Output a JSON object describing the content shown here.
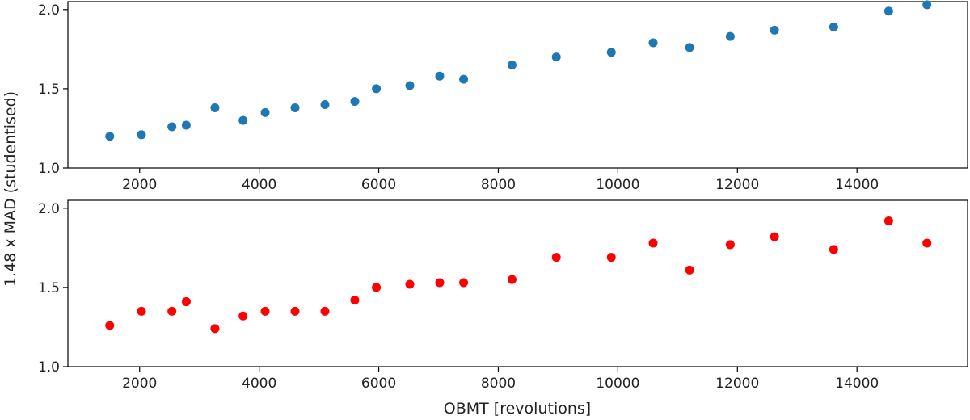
{
  "chart_data": [
    {
      "type": "scatter",
      "color": "#1f77b4",
      "ylim": [
        1.0,
        2.05
      ],
      "xlim": [
        800,
        15850
      ],
      "xticks": [
        2000,
        4000,
        6000,
        8000,
        10000,
        12000,
        14000
      ],
      "yticks": [
        1.0,
        1.5,
        2.0
      ],
      "x": [
        1500,
        2030,
        2540,
        2780,
        3260,
        3730,
        4100,
        4600,
        5100,
        5600,
        5960,
        6520,
        7020,
        7420,
        8230,
        8970,
        9890,
        10590,
        11200,
        11880,
        12620,
        13610,
        14530,
        15170
      ],
      "y": [
        1.2,
        1.21,
        1.26,
        1.27,
        1.38,
        1.3,
        1.35,
        1.38,
        1.4,
        1.42,
        1.5,
        1.52,
        1.58,
        1.56,
        1.65,
        1.7,
        1.73,
        1.79,
        1.76,
        1.83,
        1.87,
        1.89,
        1.99,
        2.03
      ],
      "ylabel": "1.48 x MAD (studentised)",
      "xlabel": ""
    },
    {
      "type": "scatter",
      "color": "#ff0000",
      "ylim": [
        1.0,
        2.05
      ],
      "xlim": [
        800,
        15850
      ],
      "xticks": [
        2000,
        4000,
        6000,
        8000,
        10000,
        12000,
        14000
      ],
      "yticks": [
        1.0,
        1.5,
        2.0
      ],
      "x": [
        1500,
        2030,
        2540,
        2780,
        3260,
        3730,
        4100,
        4600,
        5100,
        5600,
        5960,
        6520,
        7020,
        7420,
        8230,
        8970,
        9890,
        10590,
        11200,
        11880,
        12620,
        13610,
        14530,
        15170
      ],
      "y": [
        1.26,
        1.35,
        1.35,
        1.41,
        1.24,
        1.32,
        1.35,
        1.35,
        1.35,
        1.42,
        1.5,
        1.52,
        1.53,
        1.53,
        1.55,
        1.69,
        1.69,
        1.78,
        1.61,
        1.77,
        1.82,
        1.74,
        1.92,
        1.78
      ],
      "ylabel": "",
      "xlabel": "OBMT [revolutions]"
    }
  ],
  "ytick_labels": [
    "1.0",
    "1.5",
    "2.0"
  ],
  "xtick_labels": [
    "2000",
    "4000",
    "6000",
    "8000",
    "10000",
    "12000",
    "14000"
  ],
  "shared_ylabel": "1.48 x MAD (studentised)",
  "xlabel": "OBMT [revolutions]"
}
